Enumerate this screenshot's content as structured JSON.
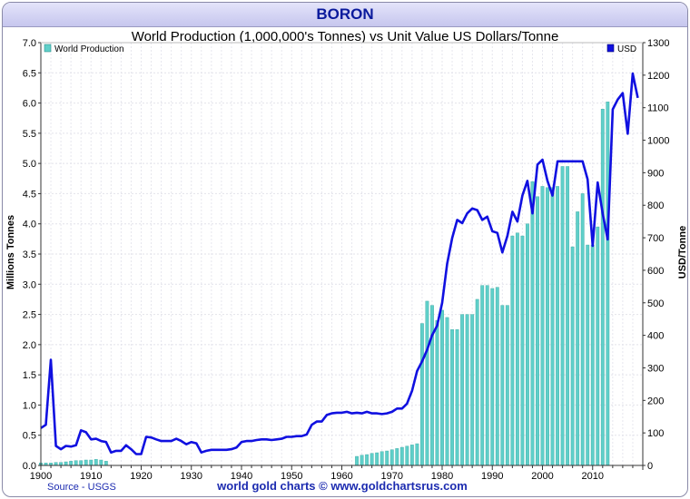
{
  "header": {
    "title": "BORON"
  },
  "chart_data": {
    "type": "bar+line",
    "subtitle": "World Production (1,000,000's Tonnes) vs Unit Value US Dollars/Tonne",
    "ylabel_left": "Millions Tonnes",
    "ylabel_right": "USD/Tonne",
    "ylim_left": [
      0,
      7
    ],
    "ylim_right": [
      0,
      1300
    ],
    "xlim": [
      1900,
      2020
    ],
    "yticks_left": [
      "0.0",
      "0.5",
      "1.0",
      "1.5",
      "2.0",
      "2.5",
      "3.0",
      "3.5",
      "4.0",
      "4.5",
      "5.0",
      "5.5",
      "6.0",
      "6.5",
      "7.0"
    ],
    "yticks_right": [
      "0",
      "100",
      "200",
      "300",
      "400",
      "500",
      "600",
      "700",
      "800",
      "900",
      "1000",
      "1100",
      "1200",
      "1300"
    ],
    "xticks": [
      "1900",
      "1910",
      "1920",
      "1930",
      "1940",
      "1950",
      "1960",
      "1970",
      "1980",
      "1990",
      "2000",
      "2010"
    ],
    "grid": true,
    "legend": {
      "bars": "World Production",
      "line": "USD"
    },
    "colors": {
      "bars": "#5fcfc9",
      "line": "#1010e0"
    },
    "production": {
      "name": "World Production",
      "points": [
        [
          1900,
          0.04
        ],
        [
          1901,
          0.04
        ],
        [
          1902,
          0.04
        ],
        [
          1903,
          0.05
        ],
        [
          1904,
          0.05
        ],
        [
          1905,
          0.06
        ],
        [
          1906,
          0.07
        ],
        [
          1907,
          0.08
        ],
        [
          1908,
          0.08
        ],
        [
          1909,
          0.09
        ],
        [
          1910,
          0.09
        ],
        [
          1911,
          0.1
        ],
        [
          1912,
          0.09
        ],
        [
          1913,
          0.07
        ],
        [
          1963,
          0.15
        ],
        [
          1964,
          0.17
        ],
        [
          1965,
          0.18
        ],
        [
          1966,
          0.2
        ],
        [
          1967,
          0.21
        ],
        [
          1968,
          0.23
        ],
        [
          1969,
          0.24
        ],
        [
          1970,
          0.26
        ],
        [
          1971,
          0.28
        ],
        [
          1972,
          0.3
        ],
        [
          1973,
          0.32
        ],
        [
          1974,
          0.34
        ],
        [
          1975,
          0.36
        ],
        [
          1976,
          2.35
        ],
        [
          1977,
          2.72
        ],
        [
          1978,
          2.65
        ],
        [
          1979,
          2.4
        ],
        [
          1980,
          2.57
        ],
        [
          1981,
          2.45
        ],
        [
          1982,
          2.25
        ],
        [
          1983,
          2.25
        ],
        [
          1984,
          2.5
        ],
        [
          1985,
          2.5
        ],
        [
          1986,
          2.5
        ],
        [
          1987,
          2.75
        ],
        [
          1988,
          2.98
        ],
        [
          1989,
          2.98
        ],
        [
          1990,
          2.93
        ],
        [
          1991,
          2.95
        ],
        [
          1992,
          2.65
        ],
        [
          1993,
          2.65
        ],
        [
          1994,
          3.8
        ],
        [
          1995,
          3.85
        ],
        [
          1996,
          3.8
        ],
        [
          1997,
          4.0
        ],
        [
          1998,
          4.7
        ],
        [
          1999,
          4.45
        ],
        [
          2000,
          4.62
        ],
        [
          2001,
          4.6
        ],
        [
          2002,
          4.6
        ],
        [
          2003,
          4.62
        ],
        [
          2004,
          4.95
        ],
        [
          2005,
          4.95
        ],
        [
          2006,
          3.62
        ],
        [
          2007,
          4.2
        ],
        [
          2008,
          4.5
        ],
        [
          2009,
          3.65
        ],
        [
          2010,
          3.65
        ],
        [
          2011,
          3.95
        ],
        [
          2012,
          5.9
        ],
        [
          2013,
          6.02
        ]
      ]
    },
    "usd": {
      "name": "USD",
      "points": [
        [
          1900,
          115
        ],
        [
          1901,
          125
        ],
        [
          1902,
          325
        ],
        [
          1903,
          60
        ],
        [
          1904,
          50
        ],
        [
          1905,
          60
        ],
        [
          1906,
          58
        ],
        [
          1907,
          62
        ],
        [
          1908,
          108
        ],
        [
          1909,
          102
        ],
        [
          1910,
          80
        ],
        [
          1911,
          82
        ],
        [
          1912,
          75
        ],
        [
          1913,
          72
        ],
        [
          1914,
          40
        ],
        [
          1915,
          45
        ],
        [
          1916,
          45
        ],
        [
          1917,
          62
        ],
        [
          1918,
          50
        ],
        [
          1919,
          35
        ],
        [
          1920,
          35
        ],
        [
          1921,
          88
        ],
        [
          1922,
          86
        ],
        [
          1923,
          80
        ],
        [
          1924,
          75
        ],
        [
          1925,
          75
        ],
        [
          1926,
          75
        ],
        [
          1927,
          82
        ],
        [
          1928,
          75
        ],
        [
          1929,
          65
        ],
        [
          1930,
          72
        ],
        [
          1931,
          68
        ],
        [
          1932,
          40
        ],
        [
          1933,
          45
        ],
        [
          1934,
          48
        ],
        [
          1935,
          48
        ],
        [
          1936,
          48
        ],
        [
          1937,
          48
        ],
        [
          1938,
          50
        ],
        [
          1939,
          55
        ],
        [
          1940,
          72
        ],
        [
          1941,
          75
        ],
        [
          1942,
          75
        ],
        [
          1943,
          78
        ],
        [
          1944,
          80
        ],
        [
          1945,
          80
        ],
        [
          1946,
          78
        ],
        [
          1947,
          80
        ],
        [
          1948,
          82
        ],
        [
          1949,
          88
        ],
        [
          1950,
          88
        ],
        [
          1951,
          90
        ],
        [
          1952,
          90
        ],
        [
          1953,
          95
        ],
        [
          1954,
          125
        ],
        [
          1955,
          135
        ],
        [
          1956,
          135
        ],
        [
          1957,
          155
        ],
        [
          1958,
          160
        ],
        [
          1959,
          162
        ],
        [
          1960,
          162
        ],
        [
          1961,
          165
        ],
        [
          1962,
          160
        ],
        [
          1963,
          162
        ],
        [
          1964,
          160
        ],
        [
          1965,
          165
        ],
        [
          1966,
          160
        ],
        [
          1967,
          160
        ],
        [
          1968,
          158
        ],
        [
          1969,
          160
        ],
        [
          1970,
          165
        ],
        [
          1971,
          175
        ],
        [
          1972,
          175
        ],
        [
          1973,
          190
        ],
        [
          1974,
          230
        ],
        [
          1975,
          290
        ],
        [
          1976,
          320
        ],
        [
          1977,
          355
        ],
        [
          1978,
          400
        ],
        [
          1979,
          430
        ],
        [
          1980,
          500
        ],
        [
          1981,
          620
        ],
        [
          1982,
          700
        ],
        [
          1983,
          755
        ],
        [
          1984,
          745
        ],
        [
          1985,
          775
        ],
        [
          1986,
          790
        ],
        [
          1987,
          785
        ],
        [
          1988,
          755
        ],
        [
          1989,
          765
        ],
        [
          1990,
          720
        ],
        [
          1991,
          715
        ],
        [
          1992,
          655
        ],
        [
          1993,
          705
        ],
        [
          1994,
          780
        ],
        [
          1995,
          750
        ],
        [
          1996,
          830
        ],
        [
          1997,
          875
        ],
        [
          1998,
          775
        ],
        [
          1999,
          925
        ],
        [
          2000,
          940
        ],
        [
          2001,
          875
        ],
        [
          2002,
          830
        ],
        [
          2003,
          935
        ],
        [
          2004,
          935
        ],
        [
          2005,
          935
        ],
        [
          2006,
          935
        ],
        [
          2007,
          935
        ],
        [
          2008,
          935
        ],
        [
          2009,
          880
        ],
        [
          2010,
          675
        ],
        [
          2011,
          870
        ],
        [
          2012,
          775
        ],
        [
          2013,
          695
        ],
        [
          2014,
          1095
        ],
        [
          2015,
          1125
        ],
        [
          2016,
          1145
        ],
        [
          2017,
          1020
        ],
        [
          2018,
          1205
        ],
        [
          2019,
          1130
        ]
      ]
    },
    "source": "Source - USGS",
    "credit": "world gold charts © www.goldchartsrus.com"
  },
  "footer": {
    "source": "Source - USGS",
    "credit": "world gold charts © www.goldchartsrus.com"
  }
}
